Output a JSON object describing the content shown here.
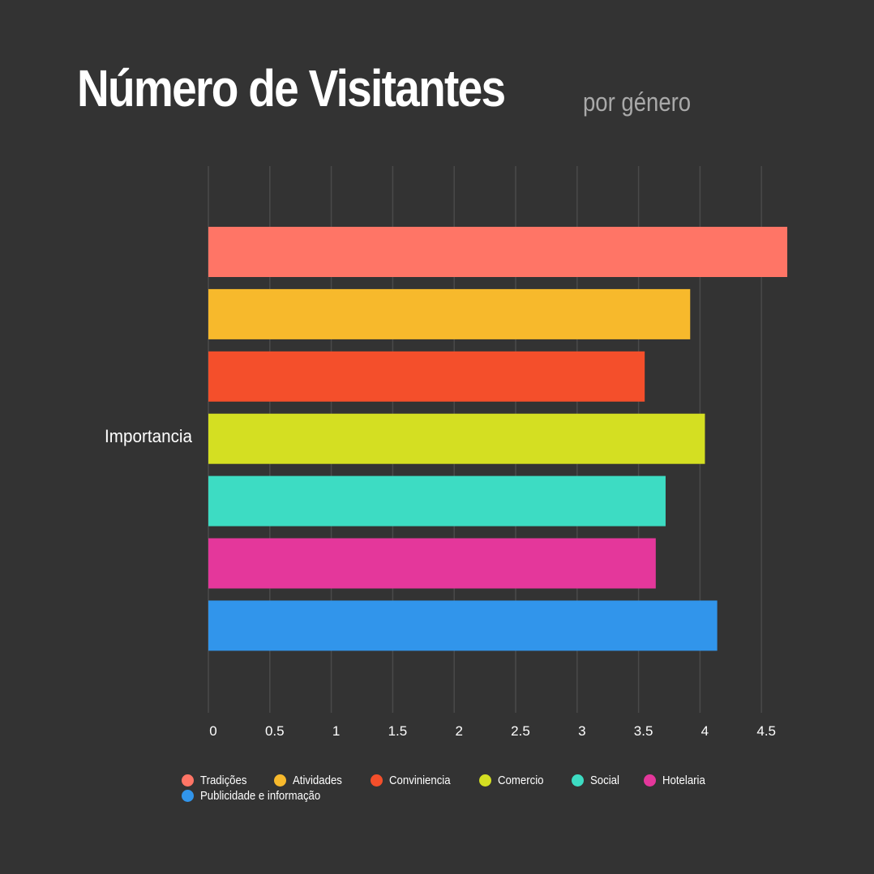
{
  "title": "Número de Visitantes",
  "subtitle": "por género",
  "chart_data": {
    "type": "bar",
    "orientation": "horizontal",
    "categories": [
      "Importancia"
    ],
    "series": [
      {
        "name": "Tradições",
        "values": [
          4.71
        ],
        "color": "#ff7566"
      },
      {
        "name": "Atividades",
        "values": [
          3.92
        ],
        "color": "#f7b92c"
      },
      {
        "name": "Conviniencia",
        "values": [
          3.55
        ],
        "color": "#f44f2b"
      },
      {
        "name": "Comercio",
        "values": [
          4.04
        ],
        "color": "#d4df22"
      },
      {
        "name": "Social",
        "values": [
          3.72
        ],
        "color": "#3ddcc3"
      },
      {
        "name": "Hotelaria",
        "values": [
          3.64
        ],
        "color": "#e4379b"
      },
      {
        "name": "Publicidade e informação",
        "values": [
          4.14
        ],
        "color": "#3195eb"
      }
    ],
    "xlim": [
      0,
      4.7
    ],
    "xticks": [
      "0",
      "0.5",
      "1",
      "1.5",
      "2",
      "2.5",
      "3",
      "3.5",
      "4",
      "4.5"
    ],
    "grid": true,
    "legend_position": "bottom"
  }
}
